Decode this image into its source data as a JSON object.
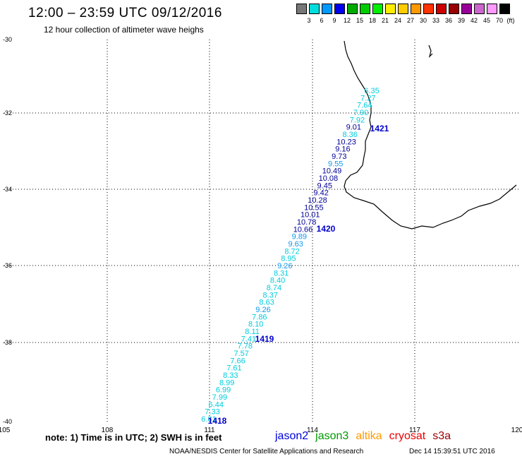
{
  "header": {
    "title": "12:00 – 23:59 UTC 09/12/2016",
    "subtitle": "12 hour collection of altimeter wave heighs"
  },
  "scale": {
    "unit": "(ft)",
    "colors": [
      "#777777",
      "#00dddd",
      "#0099ff",
      "#0000ee",
      "#00aa00",
      "#00cc00",
      "#00ee00",
      "#ffee00",
      "#ffcc00",
      "#ff9900",
      "#ff3300",
      "#cc0000",
      "#990000",
      "#990099",
      "#cc66cc",
      "#ff99ff",
      "#000000"
    ],
    "labels": [
      "3",
      "6",
      "9",
      "12",
      "15",
      "18",
      "21",
      "24",
      "27",
      "30",
      "33",
      "36",
      "39",
      "42",
      "45",
      "70"
    ]
  },
  "axes": {
    "x_ticks": [
      "105",
      "108",
      "111",
      "114",
      "117",
      "120"
    ],
    "y_ticks": [
      "-30",
      "-32",
      "-34",
      "-36",
      "-38",
      "-40"
    ]
  },
  "passes": [
    "1418",
    "1419",
    "1420",
    "1421"
  ],
  "swh_values": [
    "6.81",
    "7.33",
    "6.44",
    "7.99",
    "6.99",
    "8.99",
    "8.33",
    "7.61",
    "7.66",
    "7.57",
    "7.78",
    "7.41",
    "8.11",
    "8.10",
    "7.86",
    "9.26",
    "8.63",
    "8.37",
    "8.74",
    "8.40",
    "8.31",
    "9.26",
    "8.95",
    "8.72",
    "9.63",
    "9.89",
    "10.66",
    "10.78",
    "10.01",
    "10.55",
    "10.28",
    "9.42",
    "9.45",
    "10.08",
    "10.49",
    "9.55",
    "9.73",
    "9.16",
    "10.23",
    "8.36",
    "9.01",
    "7.92",
    "7.90",
    "7.64",
    "7.27",
    "6.35"
  ],
  "swh_colors": [
    "#00ccdd",
    "#00ccdd",
    "#00ccdd",
    "#00ccdd",
    "#00ccdd",
    "#00ccdd",
    "#00ccdd",
    "#00ccdd",
    "#00ccdd",
    "#00ccdd",
    "#00ccdd",
    "#00ccdd",
    "#00ccdd",
    "#00ccdd",
    "#00ccdd",
    "#1199ee",
    "#00ccdd",
    "#00ccdd",
    "#00ccdd",
    "#00ccdd",
    "#00ccdd",
    "#1199ee",
    "#00ccdd",
    "#00ccdd",
    "#1199ee",
    "#1199ee",
    "#000099",
    "#000099",
    "#000099",
    "#000099",
    "#000099",
    "#000099",
    "#000099",
    "#000099",
    "#000099",
    "#1199ee",
    "#000099",
    "#000099",
    "#000099",
    "#00ccdd",
    "#000099",
    "#00ccdd",
    "#00ccdd",
    "#00ccdd",
    "#00ccdd",
    "#00ccdd"
  ],
  "footer": {
    "note": "note: 1) Time is in UTC; 2) SWH is in feet",
    "satellites": [
      {
        "name": "jason2",
        "color": "#0000dd"
      },
      {
        "name": "jason3",
        "color": "#009900"
      },
      {
        "name": "altika",
        "color": "#ff9900"
      },
      {
        "name": "cryosat",
        "color": "#ee0000"
      },
      {
        "name": "s3a",
        "color": "#990000"
      }
    ],
    "credit": "NOAA/NESDIS Center for Satellite Applications and Research",
    "timestamp": "Dec 14 15:39:51 UTC 2016"
  }
}
